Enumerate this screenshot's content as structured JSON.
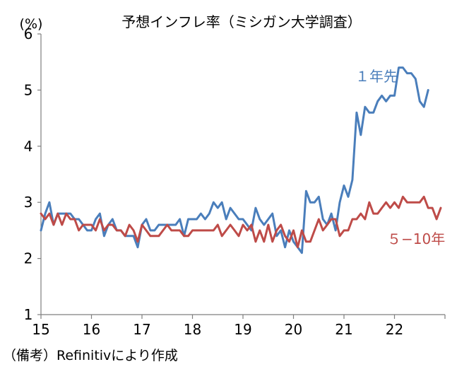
{
  "chart_data": {
    "type": "line",
    "title": "予想インフレ率（ミシガン大学調査）",
    "yunit": "(%)",
    "ylim": [
      1,
      6
    ],
    "yticks": [
      "1",
      "2",
      "3",
      "4",
      "5",
      "6"
    ],
    "xlim": [
      2015.0,
      2023.0
    ],
    "xticks": [
      {
        "label": "15",
        "value": 2015
      },
      {
        "label": "16",
        "value": 2016
      },
      {
        "label": "17",
        "value": 2017
      },
      {
        "label": "18",
        "value": 2018
      },
      {
        "label": "19",
        "value": 2019
      },
      {
        "label": "20",
        "value": 2020
      },
      {
        "label": "21",
        "value": 2021
      },
      {
        "label": "22",
        "value": 2022
      }
    ],
    "grid": false,
    "series": [
      {
        "name": "１年先",
        "color": "#4a7ebb",
        "x_start": "2015-01",
        "frequency": "monthly",
        "values": [
          2.5,
          2.8,
          3.0,
          2.6,
          2.8,
          2.8,
          2.8,
          2.8,
          2.7,
          2.7,
          2.6,
          2.5,
          2.5,
          2.7,
          2.8,
          2.4,
          2.6,
          2.7,
          2.5,
          2.5,
          2.4,
          2.4,
          2.4,
          2.2,
          2.6,
          2.7,
          2.5,
          2.5,
          2.6,
          2.6,
          2.6,
          2.6,
          2.6,
          2.7,
          2.4,
          2.7,
          2.7,
          2.7,
          2.8,
          2.7,
          2.8,
          3.0,
          2.9,
          3.0,
          2.7,
          2.9,
          2.8,
          2.7,
          2.7,
          2.6,
          2.5,
          2.9,
          2.7,
          2.6,
          2.7,
          2.8,
          2.4,
          2.5,
          2.2,
          2.5,
          2.3,
          2.2,
          2.1,
          3.2,
          3.0,
          3.0,
          3.1,
          2.7,
          2.6,
          2.8,
          2.5,
          3.0,
          3.3,
          3.1,
          3.4,
          4.6,
          4.2,
          4.7,
          4.6,
          4.6,
          4.8,
          4.9,
          4.8,
          4.9,
          4.9,
          5.4,
          5.4,
          5.3,
          5.3,
          5.2,
          4.8,
          4.7,
          5.0
        ]
      },
      {
        "name": "５−10年",
        "color": "#be4b48",
        "x_start": "2015-01",
        "frequency": "monthly",
        "values": [
          2.8,
          2.7,
          2.8,
          2.6,
          2.8,
          2.6,
          2.8,
          2.7,
          2.7,
          2.5,
          2.6,
          2.6,
          2.6,
          2.5,
          2.7,
          2.5,
          2.6,
          2.6,
          2.5,
          2.5,
          2.4,
          2.6,
          2.5,
          2.3,
          2.6,
          2.5,
          2.4,
          2.4,
          2.4,
          2.5,
          2.6,
          2.5,
          2.5,
          2.5,
          2.4,
          2.4,
          2.5,
          2.5,
          2.5,
          2.5,
          2.5,
          2.5,
          2.6,
          2.4,
          2.5,
          2.6,
          2.5,
          2.4,
          2.6,
          2.5,
          2.6,
          2.3,
          2.5,
          2.3,
          2.6,
          2.3,
          2.5,
          2.6,
          2.4,
          2.3,
          2.5,
          2.2,
          2.5,
          2.3,
          2.3,
          2.5,
          2.7,
          2.5,
          2.6,
          2.7,
          2.7,
          2.4,
          2.5,
          2.5,
          2.7,
          2.7,
          2.8,
          2.7,
          3.0,
          2.8,
          2.8,
          2.9,
          3.0,
          2.9,
          3.0,
          2.9,
          3.1,
          3.0,
          3.0,
          3.0,
          3.0,
          3.1,
          2.9,
          2.9,
          2.7,
          2.9
        ]
      }
    ],
    "annotations": [
      {
        "text": "１年先",
        "series": 0
      },
      {
        "text": "５−10年",
        "series": 1
      }
    ]
  },
  "note": "（備考）Refinitivにより作成"
}
